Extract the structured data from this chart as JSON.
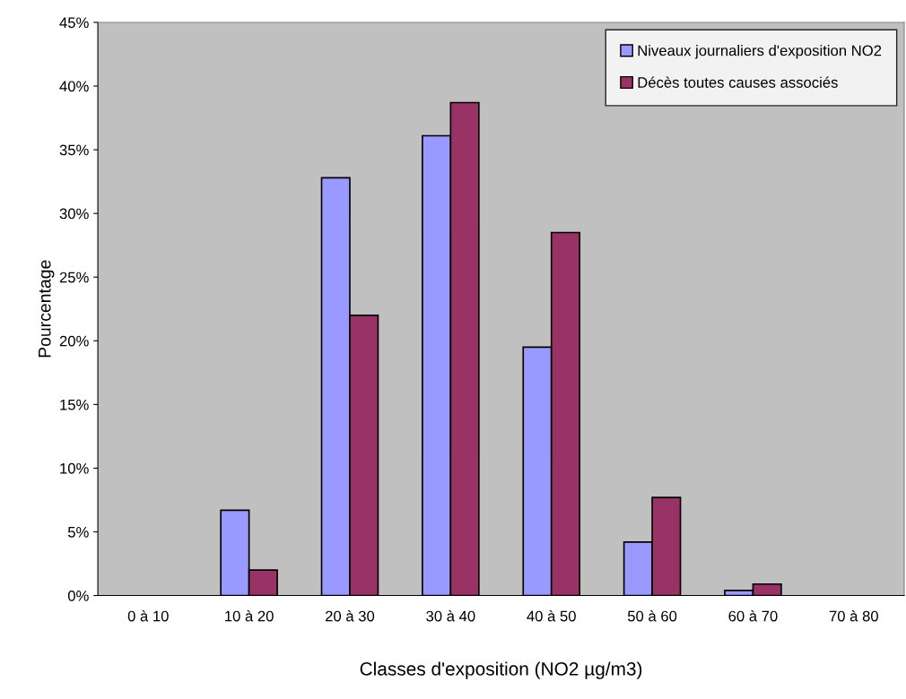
{
  "chart_data": {
    "type": "bar",
    "xlabel": "Classes d'exposition (NO2 µg/m3)",
    "ylabel": "Pourcentage",
    "categories": [
      "0 à 10",
      "10 à 20",
      "20 à 30",
      "30 à 40",
      "40 à 50",
      "50 à 60",
      "60 à 70",
      "70 à 80"
    ],
    "series": [
      {
        "name": "Niveaux journaliers d'exposition NO2",
        "color": "#9999ff",
        "values": [
          null,
          6.7,
          32.8,
          36.1,
          19.5,
          4.2,
          0.4,
          null
        ]
      },
      {
        "name": "Décès toutes causes associés",
        "color": "#993366",
        "values": [
          null,
          2.0,
          22.0,
          38.7,
          28.5,
          7.7,
          0.9,
          null
        ]
      }
    ],
    "ylim": [
      0,
      45
    ],
    "yticks": [
      {
        "value": 0,
        "label": "0%"
      },
      {
        "value": 5,
        "label": "5%"
      },
      {
        "value": 10,
        "label": "10%"
      },
      {
        "value": 15,
        "label": "15%"
      },
      {
        "value": 20,
        "label": "20%"
      },
      {
        "value": 25,
        "label": "25%"
      },
      {
        "value": 30,
        "label": "30%"
      },
      {
        "value": 35,
        "label": "35%"
      },
      {
        "value": 40,
        "label": "40%"
      },
      {
        "value": 45,
        "label": "45%"
      }
    ],
    "grid": false,
    "legend": "top right"
  }
}
